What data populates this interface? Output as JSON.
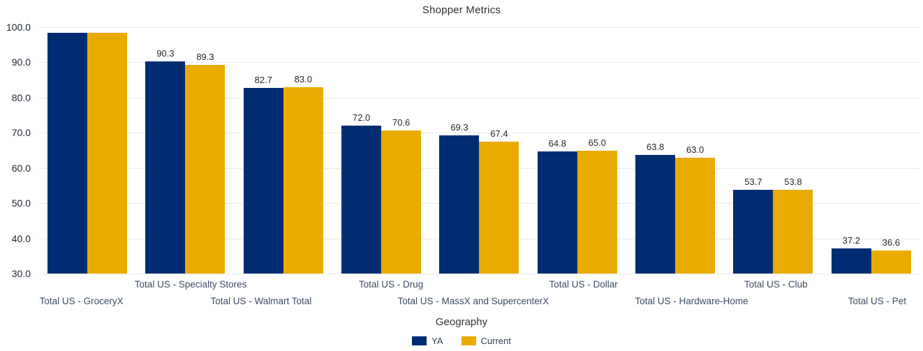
{
  "chart_data": {
    "type": "bar",
    "title": "Shopper Metrics",
    "xlabel": "Geography",
    "ylabel": "",
    "ylim": [
      30,
      100
    ],
    "ytick_step": 10,
    "yticks": [
      "100.0",
      "90.0",
      "80.0",
      "70.0",
      "60.0",
      "50.0",
      "40.0",
      "30.0"
    ],
    "grid": true,
    "legend_position": "bottom-center",
    "categories": [
      "Total US - GroceryX",
      "Total US - Specialty Stores",
      "Total US - Walmart Total",
      "Total US - Drug",
      "Total US - MassX and SupercenterX",
      "Total US - Dollar",
      "Total US - Hardware-Home",
      "Total US - Club",
      "Total US - Pet"
    ],
    "series": [
      {
        "name": "YA",
        "color": "#002d72",
        "values": [
          98.4,
          90.3,
          82.7,
          72.0,
          69.3,
          64.8,
          63.8,
          53.7,
          37.2
        ],
        "labels": [
          "",
          "90.3",
          "82.7",
          "72.0",
          "69.3",
          "64.8",
          "63.8",
          "53.7",
          "37.2"
        ]
      },
      {
        "name": "Current",
        "color": "#eaab00",
        "values": [
          98.4,
          89.3,
          83.0,
          70.6,
          67.4,
          65.0,
          63.0,
          53.8,
          36.6
        ],
        "labels": [
          "",
          "89.3",
          "83.0",
          "70.6",
          "67.4",
          "65.0",
          "63.0",
          "53.8",
          "36.6"
        ]
      }
    ]
  }
}
